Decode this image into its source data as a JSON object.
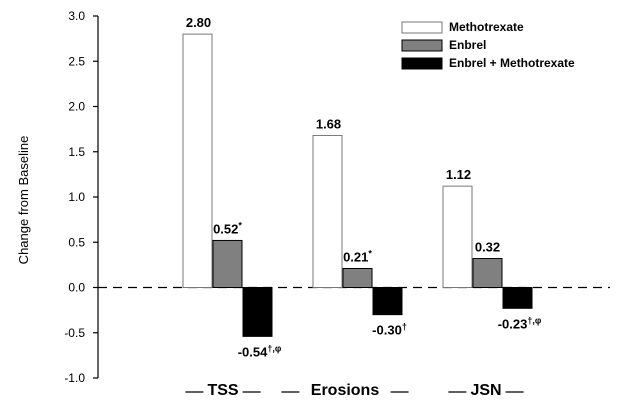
{
  "chart_data": {
    "type": "bar",
    "ylabel": "Change from Baseline",
    "ylim": [
      -1.0,
      3.0
    ],
    "yticks": [
      "3.0",
      "2.5",
      "2.0",
      "1.5",
      "1.0",
      "0.5",
      "0.0",
      "-0.5",
      "-1.0"
    ],
    "categories": [
      "TSS",
      "Erosions",
      "JSN"
    ],
    "series": [
      {
        "name": "Methotrexate",
        "values": [
          2.8,
          1.68,
          1.12
        ],
        "color": "#ffffff",
        "labels": [
          "2.80",
          "1.68",
          "1.12"
        ],
        "label_sups": [
          "",
          "",
          ""
        ]
      },
      {
        "name": "Enbrel",
        "values": [
          0.52,
          0.21,
          0.32
        ],
        "color": "#808080",
        "labels": [
          "0.52",
          "0.21",
          "0.32"
        ],
        "label_sups": [
          "*",
          "*",
          ""
        ]
      },
      {
        "name": "Enbrel + Methotrexate",
        "values": [
          -0.54,
          -0.3,
          -0.23
        ],
        "color": "#000000",
        "labels": [
          "-0.54",
          "-0.30",
          "-0.23"
        ],
        "label_sups": [
          "†,φ",
          "†",
          "†,φ"
        ]
      }
    ],
    "zero_line": "dashed",
    "grid": false,
    "legend_position": "top-right"
  }
}
